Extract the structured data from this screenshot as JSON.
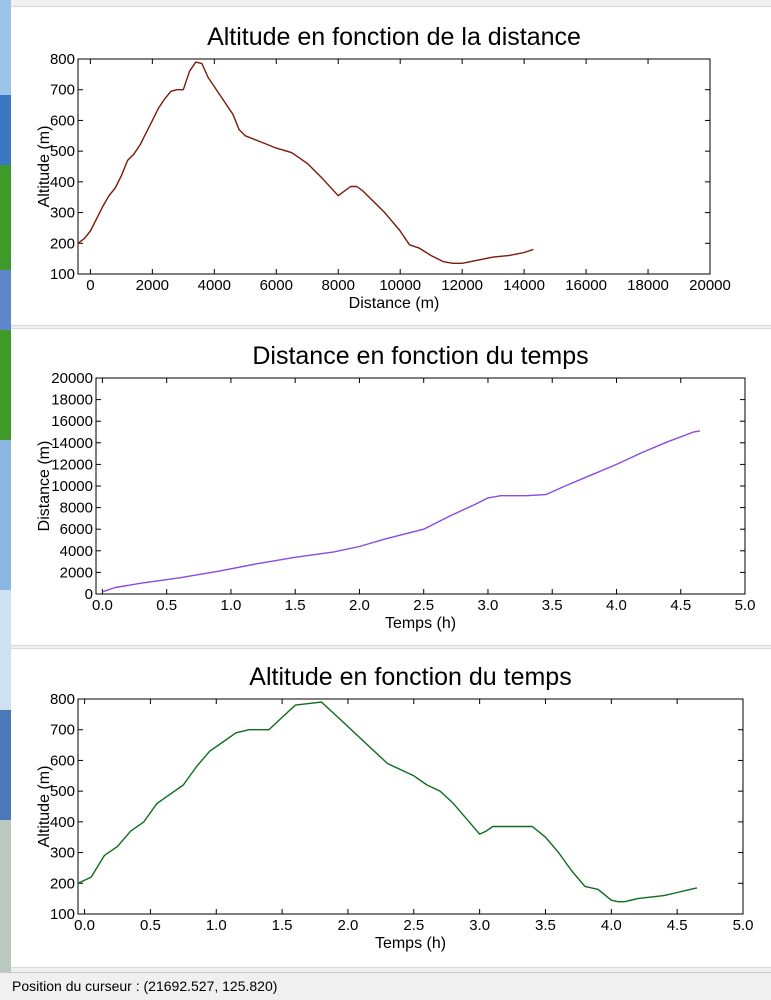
{
  "colors": {
    "chart1_line": "#7a1a0a",
    "chart2_line": "#8a4be0",
    "chart3_line": "#0d6b1e",
    "background": "#f0f0f0"
  },
  "status_bar": {
    "label": "Position du curseur : (21692.527, 125.820)"
  },
  "chart_data": [
    {
      "type": "line",
      "title": "Altitude en fonction de la distance",
      "xlabel": "Distance (m)",
      "ylabel": "Altitude (m)",
      "xlim": [
        -400,
        20000
      ],
      "ylim": [
        100,
        800
      ],
      "xticks": [
        0,
        2000,
        4000,
        6000,
        8000,
        10000,
        12000,
        14000,
        16000,
        18000,
        20000
      ],
      "yticks": [
        100,
        200,
        300,
        400,
        500,
        600,
        700,
        800
      ],
      "xtick_labels": [
        "0",
        "2000",
        "4000",
        "6000",
        "8000",
        "10000",
        "12000",
        "14000",
        "16000",
        "18000",
        "20000"
      ],
      "ytick_labels": [
        "100",
        "200",
        "300",
        "400",
        "500",
        "600",
        "700",
        "800"
      ],
      "grid": false,
      "x": [
        -400,
        -200,
        0,
        200,
        400,
        600,
        800,
        1000,
        1200,
        1400,
        1600,
        1800,
        2000,
        2200,
        2400,
        2600,
        2800,
        3000,
        3200,
        3400,
        3600,
        3800,
        4000,
        4200,
        4400,
        4600,
        4800,
        5000,
        5500,
        6000,
        6500,
        7000,
        7500,
        8000,
        8200,
        8400,
        8600,
        8800,
        9000,
        9500,
        10000,
        10300,
        10600,
        11000,
        11400,
        11700,
        12000,
        12500,
        13000,
        13500,
        14000,
        14300
      ],
      "y": [
        200,
        215,
        240,
        280,
        320,
        355,
        380,
        420,
        470,
        490,
        520,
        560,
        600,
        640,
        670,
        695,
        700,
        700,
        760,
        790,
        785,
        740,
        710,
        680,
        650,
        620,
        570,
        550,
        530,
        510,
        495,
        460,
        410,
        355,
        370,
        385,
        385,
        370,
        350,
        300,
        240,
        195,
        185,
        160,
        140,
        135,
        135,
        145,
        155,
        160,
        170,
        180
      ]
    },
    {
      "type": "line",
      "title": "Distance en fonction du temps",
      "xlabel": "Temps (h)",
      "ylabel": "Distance (m)",
      "xlim": [
        -0.05,
        5.0
      ],
      "ylim": [
        0,
        20000
      ],
      "xticks": [
        0.0,
        0.5,
        1.0,
        1.5,
        2.0,
        2.5,
        3.0,
        3.5,
        4.0,
        4.5,
        5.0
      ],
      "yticks": [
        0,
        2000,
        4000,
        6000,
        8000,
        10000,
        12000,
        14000,
        16000,
        18000,
        20000
      ],
      "xtick_labels": [
        "0.0",
        "0.5",
        "1.0",
        "1.5",
        "2.0",
        "2.5",
        "3.0",
        "3.5",
        "4.0",
        "4.5",
        "5.0"
      ],
      "ytick_labels": [
        "0",
        "2000",
        "4000",
        "6000",
        "8000",
        "10000",
        "12000",
        "14000",
        "16000",
        "18000",
        "20000"
      ],
      "grid": false,
      "x": [
        0.0,
        0.1,
        0.3,
        0.6,
        0.9,
        1.2,
        1.5,
        1.8,
        2.0,
        2.2,
        2.4,
        2.5,
        2.7,
        2.9,
        3.0,
        3.1,
        3.2,
        3.3,
        3.45,
        3.6,
        3.8,
        4.0,
        4.2,
        4.4,
        4.6,
        4.65
      ],
      "y": [
        200,
        600,
        1000,
        1500,
        2100,
        2800,
        3400,
        3900,
        4400,
        5100,
        5700,
        6000,
        7200,
        8300,
        8900,
        9100,
        9100,
        9100,
        9200,
        10000,
        11000,
        12000,
        13100,
        14100,
        15000,
        15100
      ]
    },
    {
      "type": "line",
      "title": "Altitude en fonction du temps",
      "xlabel": "Temps (h)",
      "ylabel": "Altitude (m)",
      "xlim": [
        -0.05,
        5.0
      ],
      "ylim": [
        100,
        800
      ],
      "xticks": [
        0.0,
        0.5,
        1.0,
        1.5,
        2.0,
        2.5,
        3.0,
        3.5,
        4.0,
        4.5,
        5.0
      ],
      "yticks": [
        100,
        200,
        300,
        400,
        500,
        600,
        700,
        800
      ],
      "xtick_labels": [
        "0.0",
        "0.5",
        "1.0",
        "1.5",
        "2.0",
        "2.5",
        "3.0",
        "3.5",
        "4.0",
        "4.5",
        "5.0"
      ],
      "ytick_labels": [
        "100",
        "200",
        "300",
        "400",
        "500",
        "600",
        "700",
        "800"
      ],
      "grid": false,
      "x": [
        -0.05,
        0.05,
        0.15,
        0.25,
        0.35,
        0.45,
        0.55,
        0.65,
        0.75,
        0.85,
        0.95,
        1.05,
        1.15,
        1.25,
        1.4,
        1.5,
        1.6,
        1.7,
        1.8,
        1.9,
        2.0,
        2.1,
        2.2,
        2.3,
        2.4,
        2.5,
        2.6,
        2.7,
        2.8,
        2.9,
        3.0,
        3.05,
        3.1,
        3.2,
        3.3,
        3.4,
        3.5,
        3.6,
        3.7,
        3.8,
        3.9,
        4.0,
        4.05,
        4.1,
        4.2,
        4.3,
        4.4,
        4.5,
        4.6,
        4.65
      ],
      "y": [
        200,
        220,
        290,
        320,
        370,
        400,
        460,
        490,
        520,
        580,
        630,
        660,
        690,
        700,
        700,
        740,
        780,
        785,
        790,
        750,
        710,
        670,
        630,
        590,
        570,
        550,
        520,
        500,
        460,
        410,
        360,
        370,
        385,
        385,
        385,
        385,
        350,
        300,
        240,
        190,
        180,
        145,
        140,
        140,
        150,
        155,
        160,
        170,
        180,
        185
      ]
    }
  ]
}
